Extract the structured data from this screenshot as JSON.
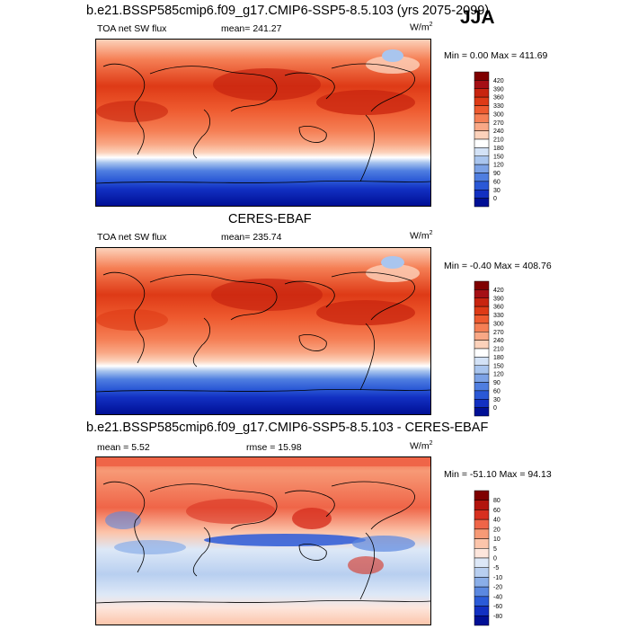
{
  "season": "JJA",
  "panels": [
    {
      "title": "b.e21.BSSP585cmip6.f09_g17.CMIP6-SSP5-8.5.103 (yrs 2075-2099)",
      "left_label": "TOA net SW flux",
      "center_label": "mean= 241.27",
      "unit": "W/m",
      "unit_exp": "2",
      "minmax": "Min =   0.00 Max = 411.69",
      "colorbar": {
        "labels": [
          "420",
          "390",
          "360",
          "330",
          "300",
          "270",
          "240",
          "210",
          "180",
          "150",
          "120",
          "90",
          "60",
          "30",
          "0"
        ],
        "colors": [
          "#7f0000",
          "#a50f15",
          "#c8240f",
          "#de3a16",
          "#ee5a2f",
          "#f57f55",
          "#f9a886",
          "#fcd2bb",
          "#ffffff",
          "#d3e2f6",
          "#a9c5ee",
          "#7ca2e6",
          "#4f7ee0",
          "#2a58d6",
          "#1230c2",
          "#000f95"
        ]
      }
    },
    {
      "title": "CERES-EBAF",
      "left_label": "TOA net SW flux",
      "center_label": "mean= 235.74",
      "unit": "W/m",
      "unit_exp": "2",
      "minmax": "Min =  -0.40 Max = 408.76",
      "colorbar": {
        "labels": [
          "420",
          "390",
          "360",
          "330",
          "300",
          "270",
          "240",
          "210",
          "180",
          "150",
          "120",
          "90",
          "60",
          "30",
          "0"
        ],
        "colors": [
          "#7f0000",
          "#a50f15",
          "#c8240f",
          "#de3a16",
          "#ee5a2f",
          "#f57f55",
          "#f9a886",
          "#fcd2bb",
          "#ffffff",
          "#d3e2f6",
          "#a9c5ee",
          "#7ca2e6",
          "#4f7ee0",
          "#2a58d6",
          "#1230c2",
          "#000f95"
        ]
      }
    },
    {
      "title": "b.e21.BSSP585cmip6.f09_g17.CMIP6-SSP5-8.5.103 - CERES-EBAF",
      "left_label": "mean =   5.52",
      "center_label": "rmse =  15.98",
      "unit": "W/m",
      "unit_exp": "2",
      "minmax": "Min = -51.10 Max =  94.13",
      "colorbar": {
        "labels": [
          "80",
          "60",
          "40",
          "20",
          "10",
          "5",
          "0",
          "-5",
          "-10",
          "-20",
          "-40",
          "-60",
          "-80"
        ],
        "colors": [
          "#7f0000",
          "#b2140d",
          "#d7301f",
          "#ef6548",
          "#f79a76",
          "#fcc5ab",
          "#fde6dc",
          "#dde8f7",
          "#b8cff0",
          "#8aaee8",
          "#5b88e0",
          "#2b5bd8",
          "#1230c2",
          "#000f95"
        ]
      }
    }
  ],
  "chart_data": [
    {
      "type": "heatmap",
      "title": "b.e21.BSSP585cmip6.f09_g17.CMIP6-SSP5-8.5.103 (yrs 2075-2099)",
      "variable": "TOA net SW flux",
      "season": "JJA",
      "units": "W/m2",
      "mean": 241.27,
      "min": 0.0,
      "max": 411.69,
      "levels": [
        0,
        30,
        60,
        90,
        120,
        150,
        180,
        210,
        240,
        270,
        300,
        330,
        360,
        390,
        420
      ]
    },
    {
      "type": "heatmap",
      "title": "CERES-EBAF",
      "variable": "TOA net SW flux",
      "season": "JJA",
      "units": "W/m2",
      "mean": 235.74,
      "min": -0.4,
      "max": 408.76,
      "levels": [
        0,
        30,
        60,
        90,
        120,
        150,
        180,
        210,
        240,
        270,
        300,
        330,
        360,
        390,
        420
      ]
    },
    {
      "type": "heatmap",
      "title": "b.e21.BSSP585cmip6.f09_g17.CMIP6-SSP5-8.5.103 - CERES-EBAF",
      "season": "JJA",
      "units": "W/m2",
      "mean": 5.52,
      "rmse": 15.98,
      "min": -51.1,
      "max": 94.13,
      "levels": [
        -80,
        -60,
        -40,
        -20,
        -10,
        -5,
        0,
        5,
        10,
        20,
        40,
        60,
        80
      ]
    }
  ]
}
